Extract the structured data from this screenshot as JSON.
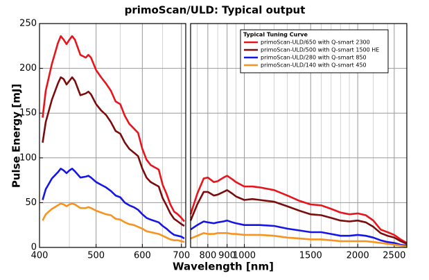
{
  "chart_data": [
    {
      "type": "line",
      "title": "primoScan/ULD: Typical output",
      "ylabel": "Pulse Energy [mJ]",
      "xlabel": "Wavelength [nm]",
      "xscale": "log",
      "grid": true,
      "xlim": [
        400,
        712
      ],
      "xticks": [
        400,
        500,
        600,
        700
      ],
      "xminor": [
        450,
        550,
        650
      ],
      "ylim": [
        0,
        250
      ],
      "yticks": [
        0,
        50,
        100,
        150,
        200,
        250
      ],
      "x": [
        405,
        410,
        420,
        430,
        435,
        440,
        445,
        450,
        455,
        460,
        470,
        480,
        485,
        490,
        500,
        510,
        520,
        530,
        540,
        550,
        560,
        570,
        580,
        590,
        600,
        610,
        620,
        640,
        650,
        660,
        670,
        680,
        690,
        700,
        708
      ],
      "series": [
        {
          "color": "#e8141c",
          "values": [
            145,
            175,
            205,
            228,
            236,
            232,
            227,
            232,
            236,
            232,
            215,
            212,
            215,
            212,
            198,
            190,
            183,
            175,
            163,
            160,
            147,
            138,
            133,
            128,
            110,
            98,
            92,
            87,
            70,
            60,
            48,
            40,
            37,
            33,
            29
          ]
        },
        {
          "color": "#7b0c0c",
          "values": [
            117,
            140,
            165,
            183,
            190,
            188,
            182,
            186,
            190,
            186,
            170,
            172,
            174,
            171,
            160,
            153,
            148,
            140,
            130,
            127,
            117,
            110,
            106,
            102,
            88,
            78,
            73,
            68,
            55,
            47,
            38,
            32,
            29,
            26,
            24
          ]
        },
        {
          "color": "#1515e6",
          "values": [
            53,
            65,
            77,
            84,
            88,
            86,
            83,
            86,
            88,
            85,
            78,
            79,
            80,
            78,
            73,
            70,
            67,
            63,
            58,
            56,
            50,
            47,
            45,
            42,
            37,
            33,
            31,
            28,
            24,
            21,
            17,
            14,
            13,
            12,
            10
          ]
        },
        {
          "color": "#f7931e",
          "values": [
            30,
            37,
            43,
            47,
            49,
            48,
            46,
            48,
            49,
            48,
            44,
            44,
            45,
            44,
            41,
            39,
            37,
            36,
            32,
            31,
            28,
            26,
            25,
            23,
            21,
            18,
            17,
            15,
            13,
            11,
            9,
            8,
            8,
            7,
            6
          ]
        }
      ]
    },
    {
      "type": "line",
      "legend_title": "Typical Tuning Curve",
      "xscale": "log",
      "grid": true,
      "xlim": [
        720,
        2700
      ],
      "xticks": [
        800,
        900,
        1000,
        1500,
        2000,
        2500
      ],
      "xminor": [
        750,
        850,
        950,
        1100,
        1200,
        1300,
        1400,
        1600,
        1700,
        1800,
        1900,
        2200,
        2400
      ],
      "ylim": [
        0,
        250
      ],
      "yticks": [
        0,
        50,
        100,
        150,
        200,
        250
      ],
      "x": [
        720,
        750,
        780,
        800,
        830,
        850,
        880,
        900,
        930,
        950,
        1000,
        1050,
        1100,
        1200,
        1300,
        1400,
        1500,
        1600,
        1700,
        1800,
        1900,
        2000,
        2100,
        2200,
        2300,
        2400,
        2500,
        2600,
        2700
      ],
      "series": [
        {
          "name": "primoScan-ULD/650 with Q-smart 2300",
          "color": "#e8141c",
          "values": [
            37,
            60,
            77,
            78,
            73,
            74,
            78,
            80,
            76,
            73,
            68,
            68,
            67,
            64,
            58,
            52,
            48,
            47,
            43,
            39,
            37,
            38,
            36,
            30,
            20,
            17,
            14,
            9,
            5
          ]
        },
        {
          "name": "primoScan-ULD/500 with Q-smart 1500 HE",
          "color": "#7b0c0c",
          "values": [
            30,
            48,
            62,
            62,
            58,
            59,
            62,
            64,
            60,
            57,
            53,
            54,
            53,
            51,
            46,
            41,
            37,
            36,
            33,
            30,
            29,
            30,
            28,
            23,
            16,
            13,
            11,
            7,
            4
          ]
        },
        {
          "name": "primoScan-ULD/280 with Q-smart 850",
          "color": "#1515e6",
          "values": [
            20,
            25,
            29,
            28,
            27,
            28,
            29,
            30,
            28,
            27,
            25,
            25,
            25,
            24,
            21,
            19,
            17,
            17,
            15,
            13,
            13,
            14,
            13,
            11,
            8,
            6,
            5,
            3,
            2
          ]
        },
        {
          "name": "primoScan-ULD/140 with Q-smart 450",
          "color": "#f7931e",
          "values": [
            10,
            13,
            16,
            15,
            15,
            16,
            16,
            16,
            15,
            15,
            14,
            14,
            14,
            13,
            11,
            10,
            9,
            9,
            8,
            7,
            7,
            7,
            7,
            6,
            5,
            4,
            3,
            2,
            1
          ]
        }
      ]
    }
  ]
}
